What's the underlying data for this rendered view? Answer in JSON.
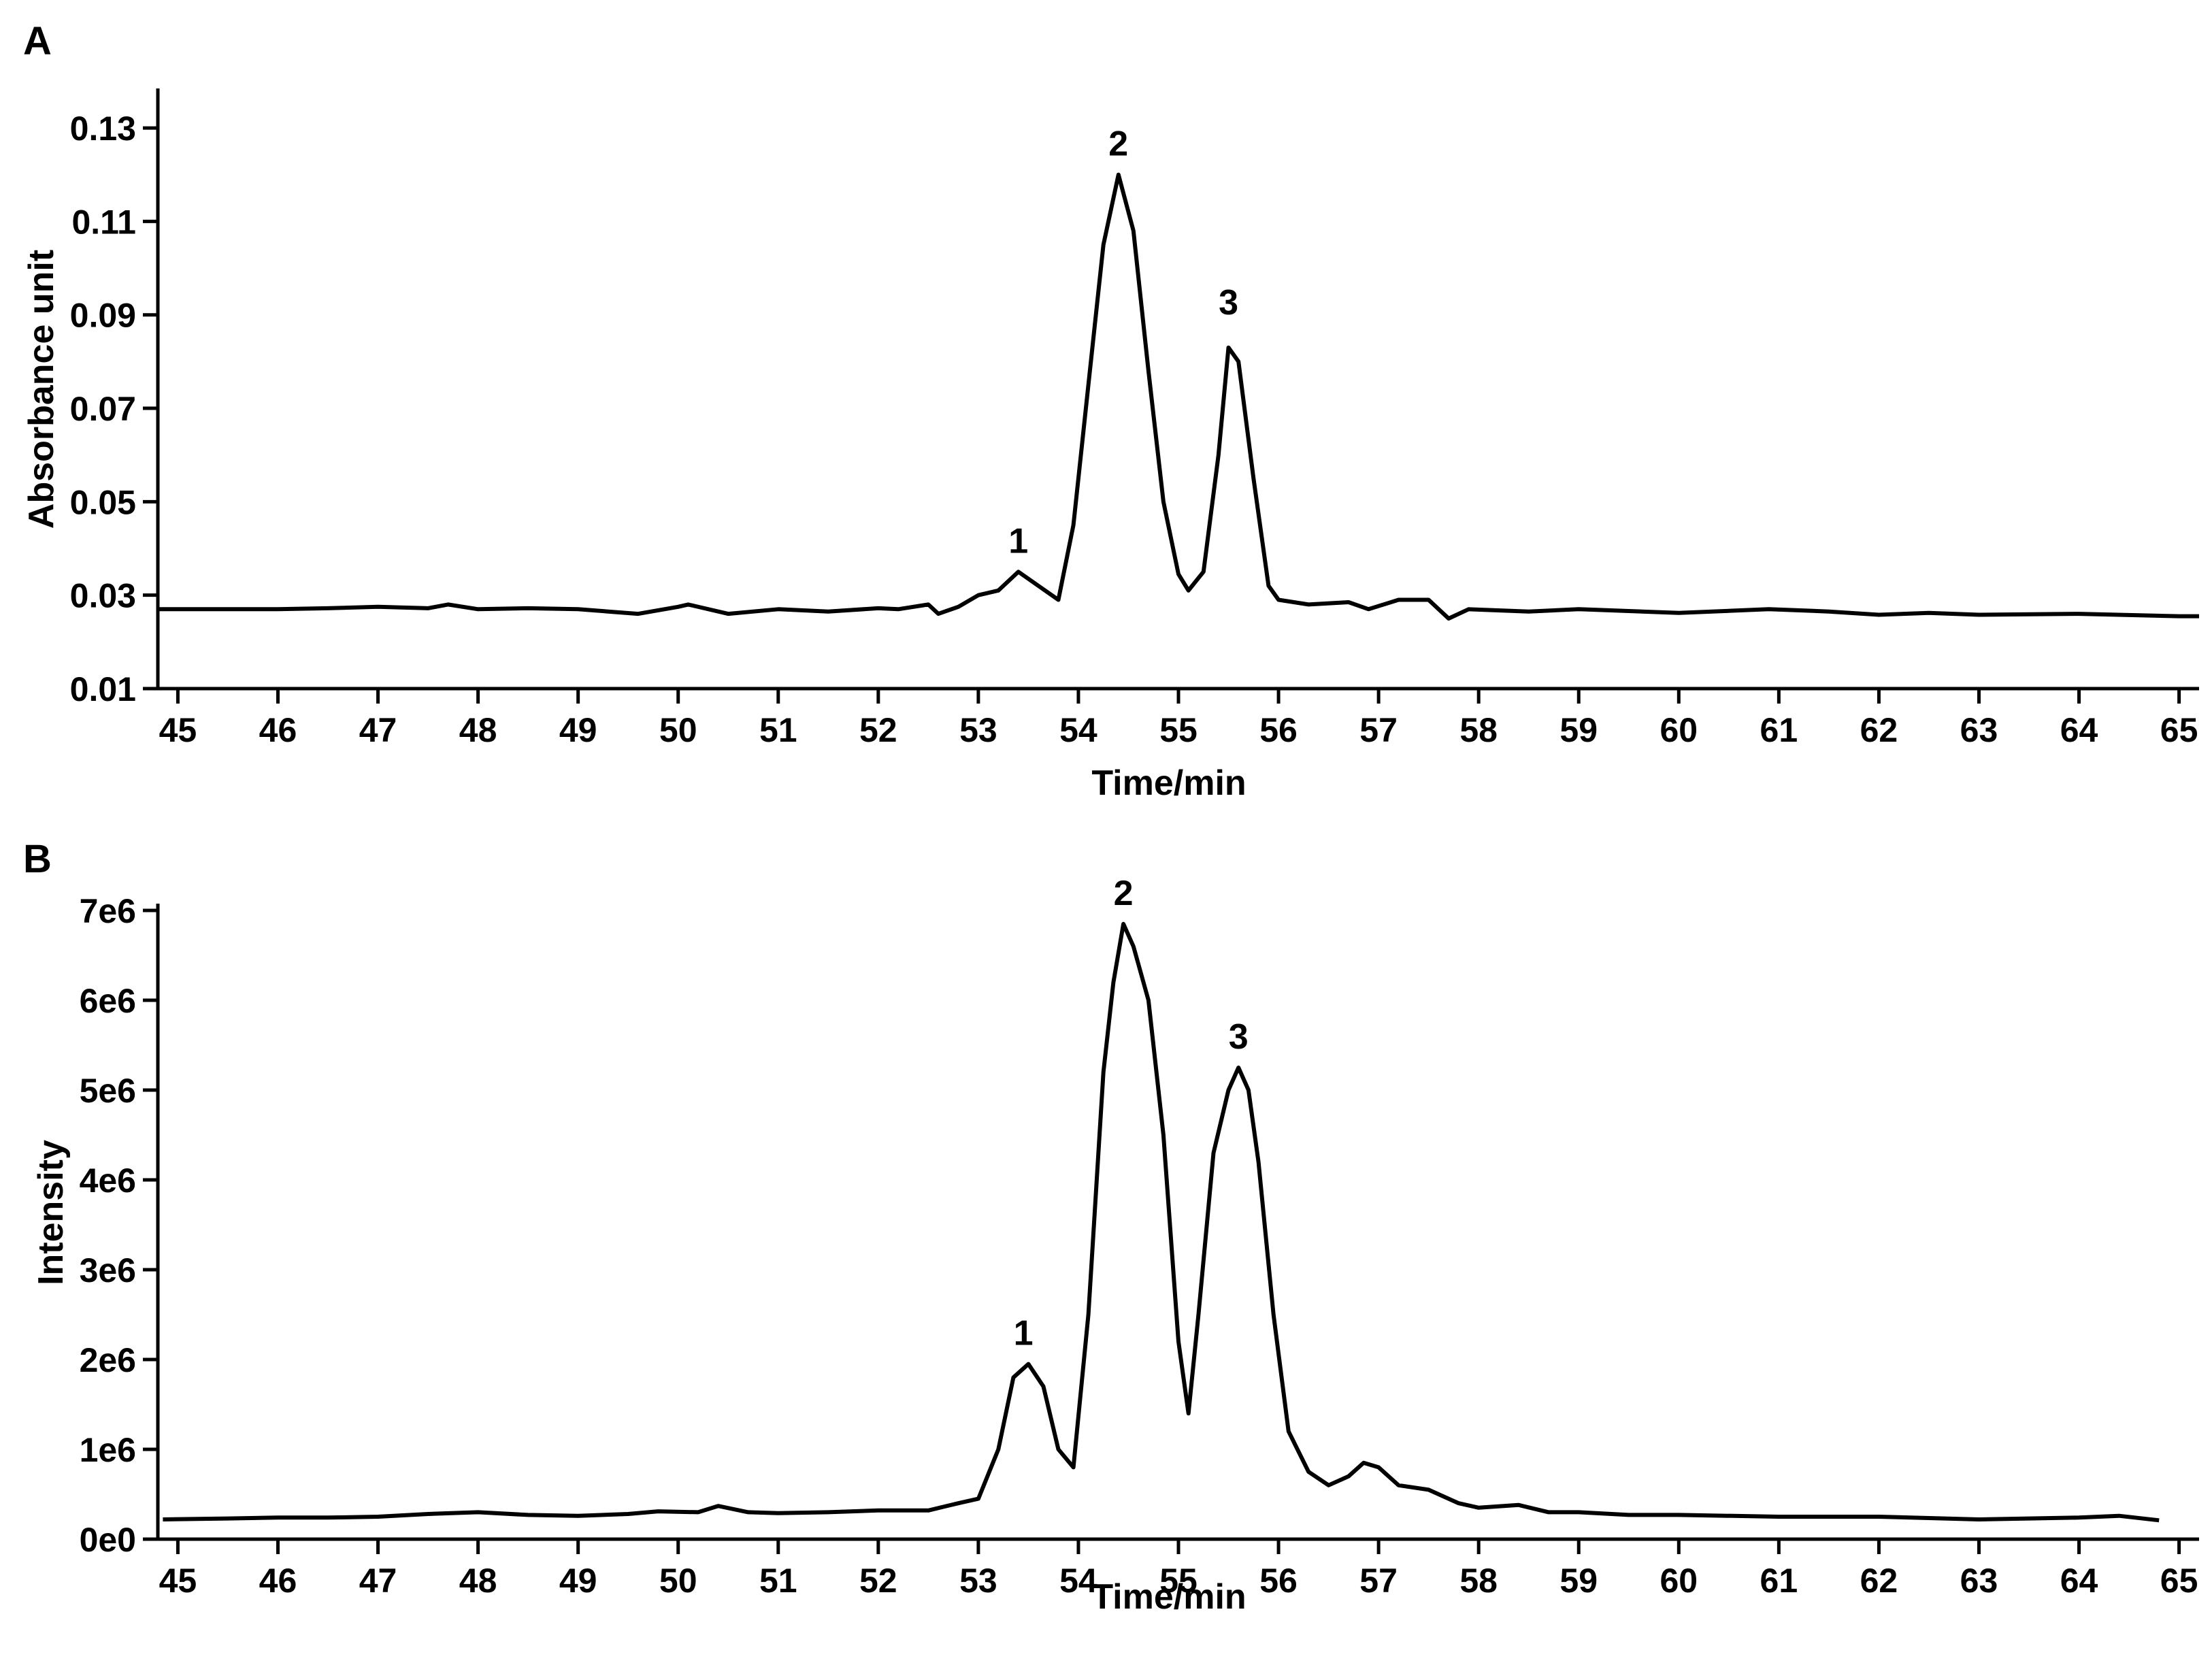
{
  "chart_data": [
    {
      "panel": "A",
      "type": "line",
      "xlabel": "Time/min",
      "ylabel": "Absorbance unit",
      "xlim": [
        44.8,
        65.2
      ],
      "ylim": [
        0.01,
        0.137
      ],
      "x_ticks": [
        45,
        46,
        47,
        48,
        49,
        50,
        51,
        52,
        53,
        54,
        55,
        56,
        57,
        58,
        59,
        60,
        61,
        62,
        63,
        64,
        65
      ],
      "y_ticks": [
        0.01,
        0.03,
        0.05,
        0.07,
        0.09,
        0.11,
        0.13
      ],
      "y_tick_labels": [
        "0.01",
        "0.03",
        "0.05",
        "0.07",
        "0.09",
        "0.11",
        "0.13"
      ],
      "grid": false,
      "color": "#000000",
      "peaks": [
        {
          "label": "1",
          "x": 53.4,
          "y": 0.035
        },
        {
          "label": "2",
          "x": 54.4,
          "y": 0.12
        },
        {
          "label": "3",
          "x": 55.5,
          "y": 0.086
        }
      ],
      "series": [
        {
          "x": [
            44.8,
            45.0,
            45.5,
            46.0,
            46.5,
            47.0,
            47.5,
            47.7,
            48.0,
            48.5,
            49.0,
            49.3,
            49.6,
            50.0,
            50.1,
            50.5,
            51.0,
            51.5,
            52.0,
            52.2,
            52.5,
            52.6,
            52.8,
            53.0,
            53.2,
            53.4,
            53.6,
            53.8,
            53.95,
            54.1,
            54.25,
            54.4,
            54.55,
            54.7,
            54.85,
            55.0,
            55.1,
            55.25,
            55.4,
            55.5,
            55.6,
            55.75,
            55.9,
            56.0,
            56.3,
            56.7,
            56.9,
            57.2,
            57.5,
            57.7,
            57.9,
            58.5,
            59.0,
            60.0,
            60.9,
            61.5,
            62.0,
            62.5,
            63.0,
            64.0,
            65.0,
            65.2
          ],
          "y": [
            0.027,
            0.027,
            0.027,
            0.027,
            0.0272,
            0.0275,
            0.0272,
            0.028,
            0.027,
            0.0272,
            0.027,
            0.0265,
            0.026,
            0.0275,
            0.028,
            0.026,
            0.027,
            0.0265,
            0.0272,
            0.027,
            0.028,
            0.026,
            0.0275,
            0.03,
            0.031,
            0.035,
            0.032,
            0.029,
            0.045,
            0.075,
            0.105,
            0.12,
            0.108,
            0.078,
            0.05,
            0.0345,
            0.031,
            0.035,
            0.06,
            0.083,
            0.08,
            0.055,
            0.032,
            0.029,
            0.028,
            0.0285,
            0.027,
            0.029,
            0.029,
            0.025,
            0.027,
            0.0265,
            0.027,
            0.0262,
            0.027,
            0.0265,
            0.0258,
            0.0262,
            0.0258,
            0.026,
            0.0255,
            0.0255
          ]
        }
      ]
    },
    {
      "panel": "B",
      "type": "line",
      "xlabel": "Time/min",
      "ylabel": "Intensity",
      "xlim": [
        44.8,
        65.2
      ],
      "ylim": [
        0,
        7000000
      ],
      "x_ticks": [
        45,
        46,
        47,
        48,
        49,
        50,
        51,
        52,
        53,
        54,
        55,
        56,
        57,
        58,
        59,
        60,
        61,
        62,
        63,
        64,
        65
      ],
      "y_ticks": [
        0,
        1000000,
        2000000,
        3000000,
        4000000,
        5000000,
        6000000,
        7000000
      ],
      "y_tick_labels": [
        "0e0",
        "1e6",
        "2e6",
        "3e6",
        "4e6",
        "5e6",
        "6e6",
        "7e6"
      ],
      "grid": false,
      "color": "#000000",
      "peaks": [
        {
          "label": "1",
          "x": 53.45,
          "y": 1950000
        },
        {
          "label": "2",
          "x": 54.45,
          "y": 6850000
        },
        {
          "label": "3",
          "x": 55.6,
          "y": 5250000
        }
      ],
      "series": [
        {
          "x": [
            44.85,
            45.5,
            46.0,
            46.5,
            47.0,
            47.5,
            48.0,
            48.5,
            49.0,
            49.5,
            49.8,
            50.2,
            50.4,
            50.7,
            51.0,
            51.5,
            52.0,
            52.5,
            52.8,
            53.0,
            53.2,
            53.35,
            53.5,
            53.65,
            53.8,
            53.95,
            54.1,
            54.25,
            54.35,
            54.45,
            54.55,
            54.7,
            54.85,
            55.0,
            55.1,
            55.2,
            55.35,
            55.5,
            55.6,
            55.7,
            55.8,
            55.95,
            56.1,
            56.3,
            56.5,
            56.7,
            56.85,
            57.0,
            57.2,
            57.5,
            57.8,
            58.0,
            58.4,
            58.7,
            59.0,
            59.5,
            60.0,
            61.0,
            62.0,
            63.0,
            64.0,
            64.4,
            64.8
          ],
          "y": [
            220000,
            230000,
            240000,
            240000,
            250000,
            280000,
            300000,
            270000,
            260000,
            280000,
            310000,
            300000,
            370000,
            300000,
            290000,
            300000,
            320000,
            320000,
            400000,
            450000,
            1000000,
            1800000,
            1950000,
            1700000,
            1000000,
            800000,
            2500000,
            5200000,
            6200000,
            6850000,
            6600000,
            6000000,
            4500000,
            2200000,
            1400000,
            2500000,
            4300000,
            5000000,
            5250000,
            5000000,
            4200000,
            2500000,
            1200000,
            750000,
            600000,
            700000,
            850000,
            800000,
            600000,
            550000,
            400000,
            350000,
            380000,
            300000,
            300000,
            270000,
            270000,
            250000,
            250000,
            220000,
            240000,
            260000,
            210000
          ]
        }
      ]
    }
  ]
}
